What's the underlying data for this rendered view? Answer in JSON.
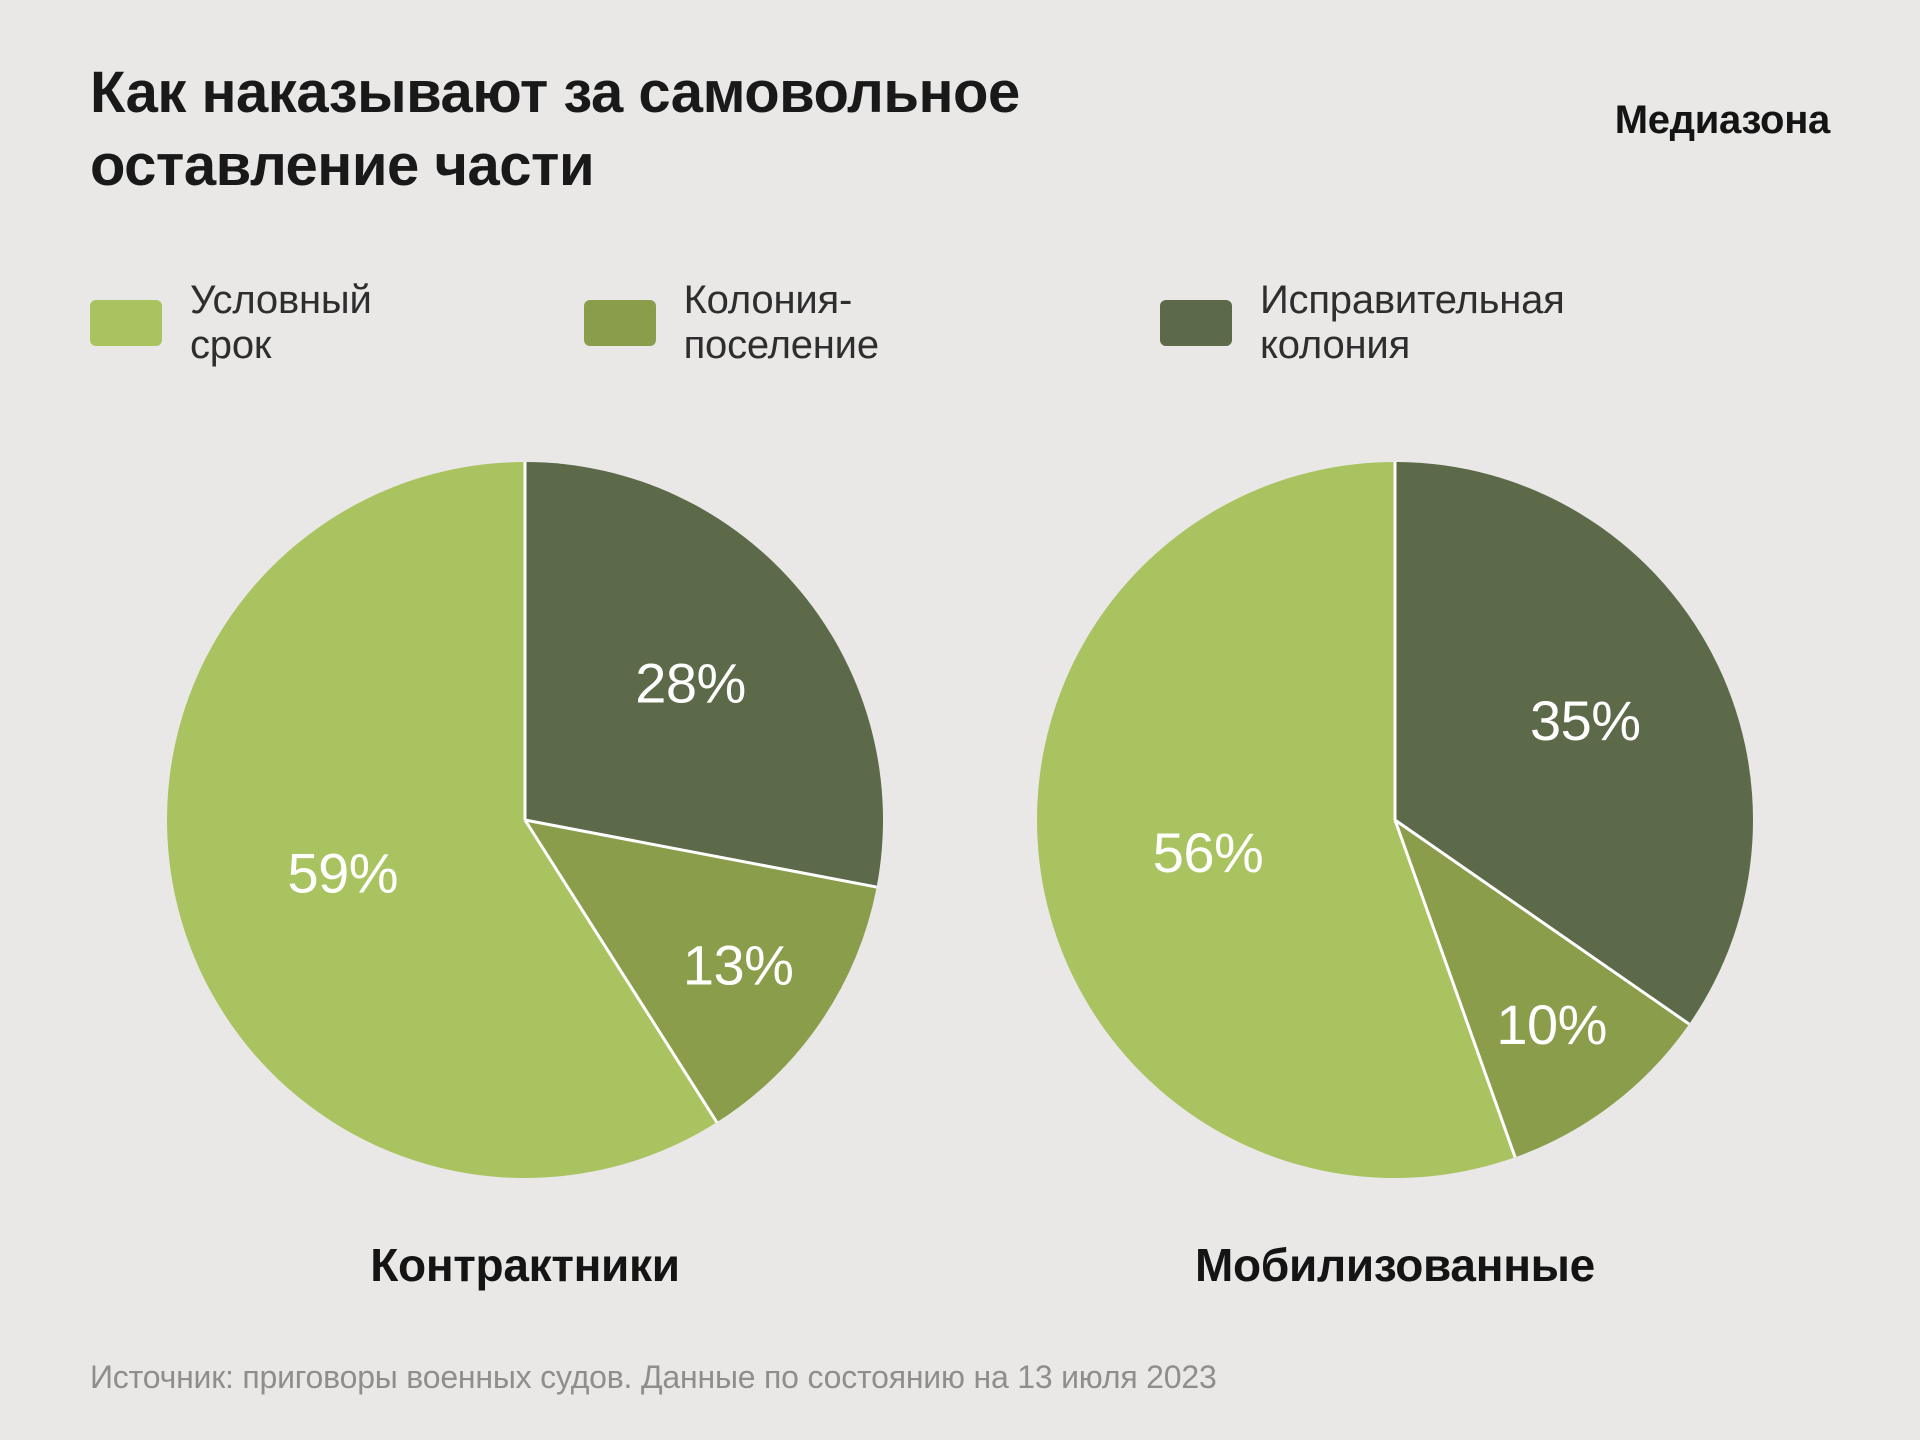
{
  "page": {
    "title_line1": "Как наказывают за самовольное",
    "title_line2": "оставление части",
    "brand": "Медиазона",
    "source": "Источник: приговоры военных судов. Данные по состоянию на 13 июля 2023",
    "background_color": "#e9e8e6"
  },
  "legend": {
    "items": [
      {
        "label": "Условный срок",
        "color": "#a9c360"
      },
      {
        "label": "Колония-поселение",
        "color": "#8a9d4b"
      },
      {
        "label": "Исправительная колония",
        "color": "#5c6a49"
      }
    ]
  },
  "chart_data": [
    {
      "type": "pie",
      "title": "Контрактники",
      "start_angle": "top",
      "direction": "clockwise",
      "label_format": "percent",
      "slices": [
        {
          "label": "Исправительная колония",
          "value": 28,
          "display": "28%",
          "color": "#5c6a49"
        },
        {
          "label": "Колония-поселение",
          "value": 13,
          "display": "13%",
          "color": "#8a9d4b"
        },
        {
          "label": "Условный срок",
          "value": 59,
          "display": "59%",
          "color": "#a9c360"
        }
      ]
    },
    {
      "type": "pie",
      "title": "Мобилизованные",
      "start_angle": "top",
      "direction": "clockwise",
      "label_format": "percent",
      "slices": [
        {
          "label": "Исправительная колония",
          "value": 35,
          "display": "35%",
          "color": "#5c6a49"
        },
        {
          "label": "Колония-поселение",
          "value": 10,
          "display": "10%",
          "color": "#8a9d4b"
        },
        {
          "label": "Условный срок",
          "value": 56,
          "display": "56%",
          "color": "#a9c360"
        }
      ]
    }
  ]
}
